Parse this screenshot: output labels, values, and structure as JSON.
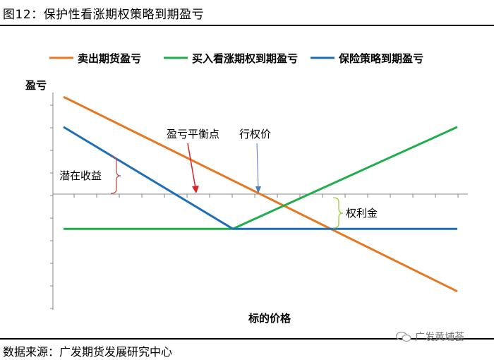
{
  "figure": {
    "title": "图12：保护性看涨期权策略到期盈亏",
    "source": "数据来源：广发期货发展研究中心",
    "watermark": "广发黄埔荟"
  },
  "chart_data": {
    "type": "line",
    "title": "",
    "ylabel": "盈亏",
    "xlabel": "标的价格",
    "grid": false,
    "legend_position": "top",
    "x_range": [
      0,
      10
    ],
    "y_range": [
      -5,
      5
    ],
    "series": [
      {
        "name": "卖出期货盈亏",
        "color": "#e87722",
        "x": [
          0,
          10
        ],
        "y": [
          4.2,
          -4.2
        ]
      },
      {
        "name": "买入看涨期权到期盈亏",
        "color": "#1fae4b",
        "x": [
          0,
          4.3,
          10
        ],
        "y": [
          -1.5,
          -1.5,
          2.9
        ]
      },
      {
        "name": "保险策略到期盈亏",
        "color": "#1f6fb8",
        "x": [
          0,
          4.3,
          10
        ],
        "y": [
          2.9,
          -1.5,
          -1.5
        ]
      }
    ],
    "annotations": {
      "breakeven": {
        "label": "盈亏平衡点",
        "x": 2.9,
        "color": "#dd1f26"
      },
      "strike": {
        "label": "行权价",
        "x": 4.3,
        "color": "#4a7bbd"
      },
      "latent_gain": {
        "label": "潜在收益"
      },
      "premium": {
        "label": "权利金"
      }
    }
  }
}
